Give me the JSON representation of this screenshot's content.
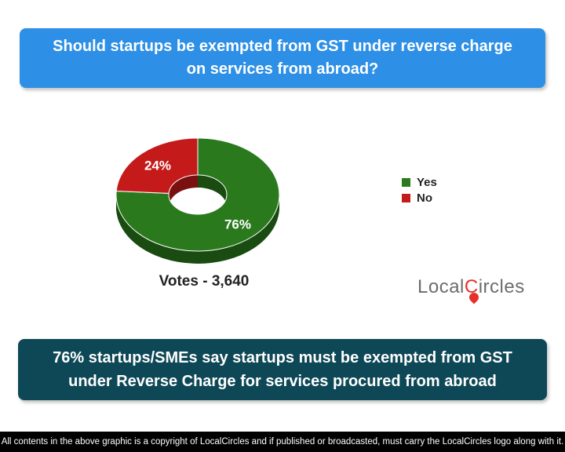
{
  "question": "Should startups be exempted from GST under reverse charge on services from abroad?",
  "chart_data": {
    "type": "pie",
    "style": "donut",
    "categories": [
      "Yes",
      "No"
    ],
    "values": [
      76,
      24
    ],
    "data_labels": [
      "76%",
      "24%"
    ],
    "colors": [
      "#2a7a1d",
      "#c41a1a"
    ],
    "legend_position": "right"
  },
  "votes_label": "Votes - 3,640",
  "logo": {
    "text_before": "Local",
    "text_accent": "C",
    "text_after": "ircles"
  },
  "finding": "76% startups/SMEs say startups must be exempted from GST under Reverse Charge for services procured from abroad",
  "footer": "All contents in the above graphic is a copyright of LocalCircles and if published or broadcasted, must carry the LocalCircles logo along with it."
}
